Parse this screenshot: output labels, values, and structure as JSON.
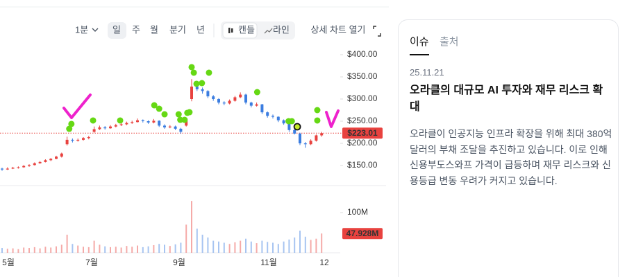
{
  "toolbar": {
    "interval": "1분",
    "periods": [
      "일",
      "주",
      "월",
      "분기",
      "년"
    ],
    "styles": [
      "캔들",
      "라인"
    ],
    "open_detail": "상세 차트 열기"
  },
  "chart_data": {
    "type": "candlestick",
    "open": [
      143,
      141,
      143,
      145,
      146,
      149,
      151,
      155,
      158,
      162,
      165,
      170,
      198,
      208,
      206,
      208,
      212,
      226,
      232,
      236,
      234,
      238,
      241,
      243,
      246,
      248,
      252,
      250,
      247,
      251,
      240,
      236,
      238,
      233,
      240,
      300,
      328,
      322,
      318,
      306,
      300,
      292,
      290,
      296,
      304,
      310,
      292,
      285,
      288,
      270,
      262,
      260,
      252,
      245,
      230,
      222,
      200,
      198,
      206,
      218
    ],
    "high": [
      145,
      146,
      147,
      148,
      151,
      153,
      157,
      160,
      164,
      167,
      172,
      179,
      215,
      211,
      211,
      214,
      217,
      238,
      240,
      239,
      241,
      244,
      246,
      249,
      251,
      256,
      254,
      252,
      255,
      252,
      243,
      241,
      240,
      235,
      256,
      345,
      333,
      326,
      320,
      309,
      302,
      295,
      299,
      307,
      315,
      312,
      294,
      292,
      289,
      272,
      265,
      261,
      254,
      247,
      236,
      224,
      203,
      209,
      220,
      226
    ],
    "low": [
      138,
      140,
      142,
      143,
      145,
      147,
      150,
      154,
      157,
      160,
      164,
      168,
      195,
      202,
      204,
      206,
      209,
      224,
      230,
      231,
      233,
      236,
      239,
      241,
      244,
      247,
      247,
      244,
      245,
      237,
      233,
      234,
      230,
      222,
      238,
      295,
      318,
      312,
      302,
      296,
      288,
      286,
      288,
      294,
      302,
      288,
      281,
      283,
      266,
      258,
      256,
      248,
      242,
      226,
      220,
      196,
      190,
      196,
      204,
      215
    ],
    "close": [
      141,
      143,
      145,
      146,
      149,
      151,
      155,
      158,
      162,
      165,
      170,
      177,
      208,
      206,
      208,
      212,
      214,
      232,
      236,
      234,
      238,
      241,
      243,
      246,
      248,
      252,
      250,
      247,
      251,
      240,
      236,
      238,
      233,
      226,
      251,
      328,
      322,
      318,
      306,
      300,
      292,
      290,
      296,
      304,
      310,
      292,
      285,
      288,
      270,
      262,
      260,
      252,
      245,
      230,
      222,
      200,
      198,
      206,
      218,
      223.01
    ],
    "up_color": "#e8423f",
    "down_color": "#3b7de0",
    "ylim": [
      130,
      425
    ],
    "yticks": [
      {
        "value": 150,
        "label": "$150.00"
      },
      {
        "value": 200,
        "label": "$200.00"
      },
      {
        "value": 250,
        "label": "$250.00"
      },
      {
        "value": 300,
        "label": "$300.00"
      },
      {
        "value": 350,
        "label": "$350.00"
      },
      {
        "value": 400,
        "label": "$400.00"
      }
    ],
    "last_price": {
      "value": 223.01,
      "label": "$223.01"
    },
    "volume": {
      "values": [
        12,
        10,
        11,
        9,
        13,
        12,
        14,
        11,
        15,
        13,
        16,
        20,
        45,
        22,
        18,
        15,
        14,
        30,
        20,
        16,
        14,
        15,
        13,
        17,
        15,
        18,
        14,
        16,
        19,
        22,
        20,
        17,
        21,
        25,
        70,
        129,
        60,
        45,
        38,
        30,
        28,
        25,
        22,
        26,
        30,
        35,
        28,
        24,
        30,
        27,
        25,
        22,
        28,
        33,
        38,
        55,
        40,
        32,
        35,
        47.928
      ],
      "ylim": [
        0,
        146.5
      ],
      "yticks": [
        {
          "value": 100,
          "label": "100M"
        }
      ],
      "last": {
        "value": 47.928,
        "label": "47.928M"
      }
    },
    "markers": {
      "x": [
        12.4,
        12.8,
        16.8,
        21.8,
        28.1,
        29.0,
        30.0,
        32.6,
        32.9,
        33.7,
        34.2,
        34.6,
        35.0,
        35.4,
        35.9,
        36.9,
        38.2,
        47.1,
        52.9,
        53.5,
        58.2,
        58.2
      ],
      "values": [
        232.8,
        243.8,
        251.6,
        251.6,
        285.9,
        278.1,
        265.6,
        265.6,
        253.1,
        253.1,
        268.8,
        270.3,
        371.9,
        359.4,
        334.4,
        335.9,
        359.4,
        315.6,
        250,
        250,
        275,
        251.6
      ],
      "color": "#66d814"
    },
    "highlight_marker": {
      "x": 54.5,
      "value": 237.5,
      "color": "#c6e82a"
    },
    "x_labels": [
      "5월",
      "7월",
      "9월",
      "11월",
      "12"
    ]
  },
  "news": {
    "tabs": [
      "이슈",
      "출처"
    ],
    "date": "25.11.21",
    "title": "오라클의 대규모 AI 투자와 재무 리스크 확대",
    "body": "오라클이 인공지능 인프라 확장을 위해 최대 380억 달러의 부채 조달을 추진하고 있습니다. 이로 인해 신용부도스와프 가격이 급등하며 재무 리스크와 신용등급 변동 우려가 커지고 있습니다."
  }
}
